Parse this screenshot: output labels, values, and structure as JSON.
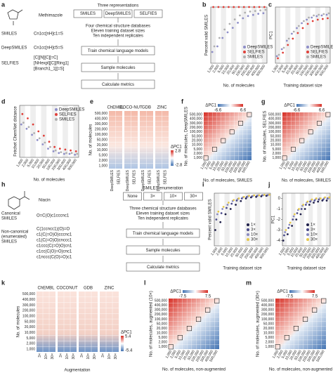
{
  "sizes": [
    "1,000",
    "2,000",
    "5,000",
    "10,000",
    "20,000",
    "50,000",
    "100,000",
    "200,000",
    "300,000",
    "400,000",
    "500,000"
  ],
  "a": {
    "label": "a",
    "molecule": "Methimazole",
    "rows": [
      {
        "name": "SMILES",
        "value": "Cn1cc[nH]c1=S"
      },
      {
        "name": "DeepSMILES",
        "value": "Cn1cc[nH]c5=S"
      },
      {
        "name": "SELFIES",
        "value": [
          "[C][N][C][=C]",
          "[NHexpl][C][Ring1]",
          "[Branch1_1][=S]"
        ]
      }
    ],
    "flow": {
      "title": "Three representations",
      "options": [
        "SMILES",
        "DeepSMILES",
        "SELFIES"
      ],
      "setup": [
        "Four chemical structure databases",
        "Eleven training dataset sizes",
        "Ten independent replicates"
      ],
      "steps": [
        "Train chemical language models",
        "Sample molecules",
        "Calculate metrics"
      ]
    }
  },
  "b": {
    "label": "b",
    "ylabel": "Percent valid SMILES",
    "xlabel": "No. of molecules",
    "ylim": [
      0,
      100
    ],
    "legend_loc": "lower right",
    "series": [
      {
        "name": "DeepSMILES",
        "color": "#8e8ec8",
        "values": [
          20,
          30,
          45,
          55,
          63,
          72,
          80,
          84,
          86,
          88,
          89
        ]
      },
      {
        "name": "SELFIES",
        "color": "#e0403a",
        "values": [
          100,
          100,
          100,
          100,
          100,
          100,
          100,
          100,
          100,
          100,
          100
        ]
      },
      {
        "name": "SMILES",
        "color": "#b0b0b0",
        "values": [
          30,
          45,
          60,
          70,
          78,
          85,
          90,
          92,
          93,
          94,
          95
        ]
      }
    ]
  },
  "c": {
    "label": "c",
    "ylabel": "PC1",
    "xlabel": "Training dataset size",
    "ylim": [
      -5,
      3
    ],
    "legend_loc": "lower right",
    "series": [
      {
        "name": "DeepSMILES",
        "color": "#8e8ec8",
        "values": [
          -4,
          -3,
          -1.8,
          -0.8,
          0,
          0.7,
          1.2,
          1.5,
          1.7,
          1.8,
          1.9
        ]
      },
      {
        "name": "SELFIES",
        "color": "#e0403a",
        "values": [
          -4.3,
          -3.5,
          -2.4,
          -1.5,
          -0.7,
          0,
          0.6,
          1,
          1.2,
          1.3,
          1.4
        ]
      },
      {
        "name": "SMILES",
        "color": "#b0b0b0",
        "values": [
          -3.8,
          -2.8,
          -1.5,
          -0.5,
          0.3,
          1,
          1.5,
          1.8,
          1.9,
          2,
          2.1
        ]
      }
    ]
  },
  "d": {
    "label": "d",
    "ylabel": "Fréchet ChemNet distance",
    "xlabel": "No. of molecules",
    "ylim": [
      0,
      60
    ],
    "legend_loc": "upper right",
    "series": [
      {
        "name": "DeepSMILES",
        "color": "#8e8ec8",
        "values": [
          38,
          33,
          26,
          20,
          15,
          10,
          7,
          5,
          4,
          4,
          3
        ]
      },
      {
        "name": "SELFIES",
        "color": "#e0403a",
        "values": [
          50,
          45,
          38,
          30,
          25,
          18,
          12,
          10,
          9,
          8,
          7
        ]
      },
      {
        "name": "SMILES",
        "color": "#b0b0b0",
        "values": [
          40,
          35,
          28,
          22,
          17,
          12,
          8,
          6,
          5,
          5,
          4
        ]
      }
    ]
  },
  "e": {
    "label": "e",
    "ylabel": "No. of molecules",
    "databases": [
      "ChEMBL",
      "COCO-NUT",
      "GDB",
      "ZINC"
    ],
    "columns": [
      "DeepSMILES",
      "SELFIES"
    ],
    "cbar_title": "ΔPC1",
    "cbar": [
      2.8,
      -2.8
    ]
  },
  "f": {
    "label": "f",
    "ylabel": "No. of molecules, DeepSMILES",
    "xlabel": "No. of molecules, SMILES",
    "cbar_title": "ΔPC1",
    "cbar": [
      -6.6,
      6.6
    ]
  },
  "g": {
    "label": "g",
    "ylabel": "No. of molecules, SELFIES",
    "xlabel": "No. of molecules, SMILES",
    "cbar_title": "ΔPC1",
    "cbar": [
      -6.6,
      6.6
    ]
  },
  "h": {
    "label": "h",
    "molecule": "Niacin",
    "canonical_label": [
      "Canonical",
      "SMILES"
    ],
    "canonical": "O=C(O)c1cccnc1",
    "noncanonical_label": [
      "Non-canonical",
      "(enumerated)",
      "SMILES"
    ],
    "noncanonical": [
      "C(1ccncc1)(O)=O",
      "c1(C(=O)O)cccnc1",
      "c1(C(=O)O)cnccc1",
      "c1ccc(C(=O)O)cn1",
      "c1cc(C(O)=O)cnc1",
      "c1nccc(C(O)=O)c1"
    ],
    "flow": {
      "title": "SMILES enumeration",
      "options": [
        "None",
        "3×",
        "10×",
        "30×"
      ],
      "setup": [
        "Three chemical structure databases",
        "Eleven training dataset sizes",
        "Ten independent replicates"
      ],
      "steps": [
        "Train chemical language models",
        "Sample molecules",
        "Calculate metrics"
      ]
    }
  },
  "i": {
    "label": "i",
    "ylabel": "Percent valid SMILES",
    "xlabel": "Training dataset size",
    "ylim": [
      0,
      100
    ],
    "legend_loc": "lower right",
    "series": [
      {
        "name": "1×",
        "color": "#1f1f4a",
        "values": [
          30,
          45,
          60,
          70,
          78,
          85,
          90,
          92,
          93,
          94,
          95
        ]
      },
      {
        "name": "3×",
        "color": "#4a4a8a",
        "values": [
          50,
          62,
          72,
          80,
          86,
          90,
          93,
          94,
          95,
          96,
          96
        ]
      },
      {
        "name": "10×",
        "color": "#8a8abf",
        "values": [
          60,
          70,
          78,
          85,
          89,
          92,
          94,
          95,
          96,
          96,
          97
        ]
      },
      {
        "name": "30×",
        "color": "#e6c84a",
        "values": [
          65,
          74,
          82,
          87,
          90,
          93,
          95,
          96,
          96,
          97,
          97
        ]
      }
    ]
  },
  "j": {
    "label": "j",
    "ylabel": "PC1",
    "xlabel": "Training dataset size",
    "ylim": [
      -4.5,
      0.5
    ],
    "yticks": [
      0,
      -1,
      -2,
      -3,
      -4
    ],
    "legend_loc": "lower right",
    "series": [
      {
        "name": "1×",
        "color": "#1f1f4a",
        "values": [
          -4,
          -3.4,
          -2.6,
          -2,
          -1.5,
          -1,
          -0.6,
          -0.4,
          -0.3,
          -0.2,
          -0.2
        ]
      },
      {
        "name": "3×",
        "color": "#4a4a8a",
        "values": [
          -3.5,
          -2.8,
          -2,
          -1.4,
          -1,
          -0.6,
          -0.3,
          -0.2,
          -0.1,
          -0.1,
          0
        ]
      },
      {
        "name": "10×",
        "color": "#8a8abf",
        "values": [
          -3.2,
          -2.5,
          -1.7,
          -1.1,
          -0.7,
          -0.4,
          -0.2,
          -0.1,
          0,
          0,
          0
        ]
      },
      {
        "name": "30×",
        "color": "#e6c84a",
        "values": [
          -3,
          -2.3,
          -1.5,
          -1,
          -0.6,
          -0.3,
          -0.1,
          0,
          0,
          0.1,
          0.1
        ]
      }
    ]
  },
  "k": {
    "label": "k",
    "ylabel": "No. of molecules",
    "xlabel": "Augmentation",
    "databases": [
      "ChEMBL",
      "COCONUT",
      "GDB",
      "ZINC"
    ],
    "columns": [
      "3×",
      "10×",
      "30×"
    ],
    "cbar_title": "ΔPC1",
    "cbar": [
      5.4,
      -5.4
    ]
  },
  "l": {
    "label": "l",
    "ylabel": "No. of molecules, augmented (10×)",
    "xlabel": "No. of molecules, non-augmented",
    "cbar_title": "ΔPC1",
    "cbar": [
      -7.5,
      7.5
    ]
  },
  "m": {
    "label": "m",
    "ylabel": "No. of molecules, augmented (30×)",
    "xlabel": "No. of molecules, non-augmented",
    "cbar_title": "ΔPC1",
    "cbar": [
      -7.5,
      7.5
    ]
  }
}
